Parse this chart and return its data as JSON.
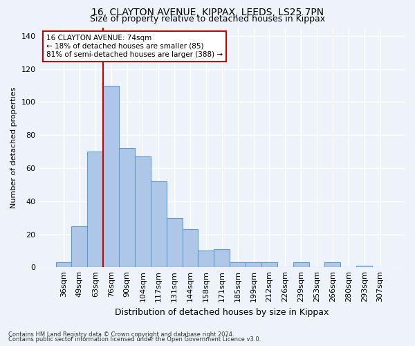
{
  "title1": "16, CLAYTON AVENUE, KIPPAX, LEEDS, LS25 7PN",
  "title2": "Size of property relative to detached houses in Kippax",
  "xlabel": "Distribution of detached houses by size in Kippax",
  "ylabel": "Number of detached properties",
  "categories": [
    "36sqm",
    "49sqm",
    "63sqm",
    "76sqm",
    "90sqm",
    "104sqm",
    "117sqm",
    "131sqm",
    "144sqm",
    "158sqm",
    "171sqm",
    "185sqm",
    "199sqm",
    "212sqm",
    "226sqm",
    "239sqm",
    "253sqm",
    "266sqm",
    "280sqm",
    "293sqm",
    "307sqm"
  ],
  "values": [
    3,
    25,
    70,
    110,
    72,
    67,
    52,
    30,
    23,
    10,
    11,
    3,
    3,
    3,
    0,
    3,
    0,
    3,
    0,
    1,
    0
  ],
  "bar_color": "#aec6e8",
  "bar_edge_color": "#5a9fd4",
  "vline_index": 3,
  "vline_color": "#cc0000",
  "annotation_text": "16 CLAYTON AVENUE: 74sqm\n← 18% of detached houses are smaller (85)\n81% of semi-detached houses are larger (388) →",
  "annotation_box_color": "#ffffff",
  "annotation_box_edge": "#cc0000",
  "background_color": "#eef2fb",
  "grid_color": "#ffffff",
  "footer1": "Contains HM Land Registry data © Crown copyright and database right 2024.",
  "footer2": "Contains public sector information licensed under the Open Government Licence v3.0.",
  "ylim": [
    0,
    145
  ],
  "yticks": [
    0,
    20,
    40,
    60,
    80,
    100,
    120,
    140
  ],
  "title1_fontsize": 10,
  "title2_fontsize": 9,
  "ylabel_fontsize": 8,
  "xlabel_fontsize": 9
}
